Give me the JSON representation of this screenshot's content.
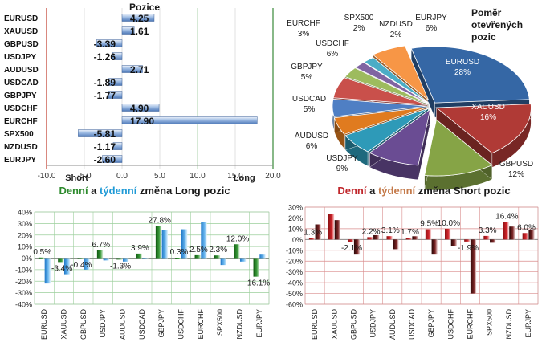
{
  "chart_data": [
    {
      "type": "bar",
      "orientation": "horizontal",
      "title": "Pozice",
      "categories": [
        "EURUSD",
        "XAUUSD",
        "GBPUSD",
        "USDJPY",
        "AUDUSD",
        "USDCAD",
        "GBPJPY",
        "USDCHF",
        "EURCHF",
        "SPX500",
        "NZDUSD",
        "EURJPY"
      ],
      "values": [
        4.25,
        1.61,
        -3.39,
        -1.26,
        2.71,
        -1.89,
        -1.77,
        4.9,
        17.9,
        -5.81,
        -1.17,
        -2.6
      ],
      "value_labels": [
        "4.25",
        "1.61",
        "-3.39",
        "-1.26",
        "2.71",
        "-1.89",
        "-1.77",
        "4.90",
        "17.90",
        "-5.81",
        "-1.17",
        "-2.60"
      ],
      "xlim": [
        -10,
        20
      ],
      "x_ticks": [
        "-10.0",
        "-5.0",
        "0.0",
        "5.0",
        "10.0",
        "15.0",
        "20.0"
      ],
      "annotations": [
        "Short",
        "Long"
      ],
      "grid": true,
      "colors": {
        "bar": "#5b85c0",
        "bar_light": "#c9d9ef",
        "short_line": "#c0392b",
        "long_line": "#3a8a3a"
      }
    },
    {
      "type": "pie",
      "title": "Poměr otevřených pozic",
      "slices": [
        {
          "label": "EURUSD",
          "value": 28,
          "text": "28%",
          "color": "#3567a5"
        },
        {
          "label": "XAUUSD",
          "value": 16,
          "text": "16%",
          "color": "#b03a36"
        },
        {
          "label": "GBPUSD",
          "value": 12,
          "text": "12%",
          "color": "#86a446"
        },
        {
          "label": "USDJPY",
          "value": 9,
          "text": "9%",
          "color": "#6a4c93"
        },
        {
          "label": "AUDUSD",
          "value": 6,
          "text": "6%",
          "color": "#2e9ab8"
        },
        {
          "label": "USDCAD",
          "value": 5,
          "text": "5%",
          "color": "#e07b1f"
        },
        {
          "label": "GBPJPY",
          "value": 5,
          "text": "5%",
          "color": "#4f7fc4"
        },
        {
          "label": "USDCHF",
          "value": 6,
          "text": "6%",
          "color": "#c9504b"
        },
        {
          "label": "EURCHF",
          "value": 3,
          "text": "3%",
          "color": "#9dbb5e"
        },
        {
          "label": "SPX500",
          "value": 2,
          "text": "2%",
          "color": "#8064a2"
        },
        {
          "label": "NZDUSD",
          "value": 2,
          "text": "2%",
          "color": "#4bacc6"
        },
        {
          "label": "EURJPY",
          "value": 6,
          "text": "6%",
          "color": "#f79646"
        }
      ]
    },
    {
      "type": "bar",
      "title_parts": [
        {
          "text": "Denní",
          "color": "#2d8a2d"
        },
        {
          "text": " a ",
          "color": "#1a1a1a"
        },
        {
          "text": "týdenní",
          "color": "#1f9ad6"
        },
        {
          "text": " změna Long pozic",
          "color": "#1a1a1a"
        }
      ],
      "categories": [
        "EURUSD",
        "XAUUSD",
        "GBPUSD",
        "USDJPY",
        "AUDUSD",
        "USDCAD",
        "GBPJPY",
        "USDCHF",
        "EURCHF",
        "SPX500",
        "NZDUSD",
        "EURJPY"
      ],
      "series": [
        {
          "values": [
            0.5,
            -3.4,
            -0.4,
            6.7,
            -1.3,
            3.9,
            27.8,
            0.3,
            2.5,
            2.3,
            12.0,
            -16.1
          ],
          "color": "#2f8a2f"
        },
        {
          "values": [
            -22,
            -14,
            -10,
            -2,
            -3,
            -1,
            24,
            25,
            31,
            -6,
            -3,
            3
          ],
          "color": "#4aa0e0"
        }
      ],
      "data_labels": [
        "0.5%",
        "-3.4%",
        "-0.4%",
        "6.7%",
        "-1.3%",
        "3.9%",
        "27.8%",
        "0.3%",
        "2.5%",
        "2.3%",
        "12.0%",
        "-16.1%"
      ],
      "ylim": [
        -40,
        40
      ],
      "y_ticks": [
        "-40%",
        "-30%",
        "-20%",
        "-10%",
        "0%",
        "10%",
        "20%",
        "30%",
        "40%"
      ],
      "grid": true
    },
    {
      "type": "bar",
      "title_parts": [
        {
          "text": "Denní",
          "color": "#c0262b"
        },
        {
          "text": " a ",
          "color": "#1a1a1a"
        },
        {
          "text": "týdenní",
          "color": "#c47a4a"
        },
        {
          "text": " změna Short pozic",
          "color": "#1a1a1a"
        }
      ],
      "categories": [
        "EURUSD",
        "XAUUSD",
        "GBPUSD",
        "USDJPY",
        "AUDUSD",
        "USDCAD",
        "GBPJPY",
        "USDCHF",
        "EURCHF",
        "SPX500",
        "NZDUSD",
        "EURJPY"
      ],
      "series": [
        {
          "values": [
            1.3,
            24,
            -2.1,
            2.2,
            3.1,
            1.7,
            9.5,
            10.0,
            -1.9,
            3.3,
            16.4,
            6.0
          ],
          "color": "#c0262b"
        },
        {
          "values": [
            14,
            18,
            -14,
            4,
            -9,
            3,
            -14,
            -6,
            -50,
            -3,
            12,
            9
          ],
          "color": "#5a1515"
        }
      ],
      "data_labels": [
        "1.3%",
        "",
        "-2.1%",
        "2.2%",
        "3.1%",
        "1.7%",
        "9.5%",
        "10.0%",
        "-1.9%",
        "3.3%",
        "16.4%",
        "6.0%"
      ],
      "ylim": [
        -60,
        30
      ],
      "y_ticks": [
        "-60%",
        "-50%",
        "-40%",
        "-30%",
        "-20%",
        "-10%",
        "0%",
        "10%",
        "20%",
        "30%"
      ],
      "grid": true
    }
  ]
}
